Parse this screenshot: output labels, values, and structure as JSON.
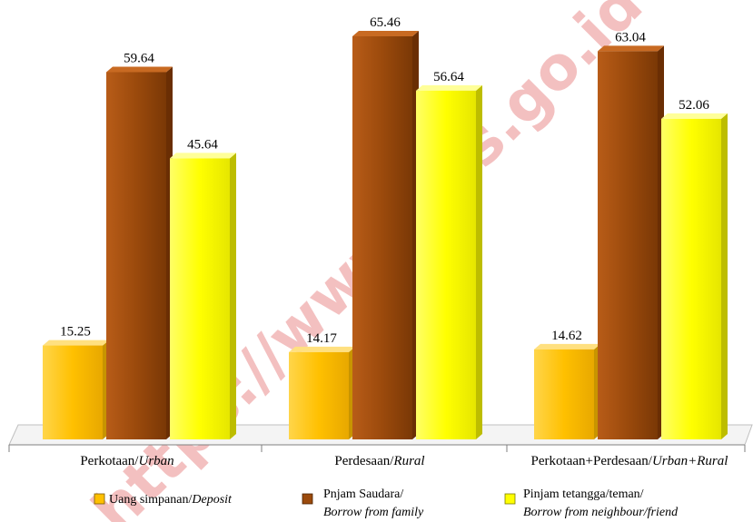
{
  "watermark": "https://www.bps.go.id",
  "chart_data": {
    "type": "bar",
    "categories": [
      {
        "main": "Perkotaan/",
        "italic": "Urban"
      },
      {
        "main": "Perdesaan/",
        "italic": "Rural"
      },
      {
        "main": "Perkotaan+Perdesaan/",
        "italic": "Urban+Rural"
      }
    ],
    "series": [
      {
        "name": "Uang simpanan/Deposit",
        "legend_main": "Uang simpanan/",
        "legend_italic": "Deposit",
        "legend_line2": "",
        "color": "#FFC000",
        "values": [
          15.25,
          14.17,
          14.62
        ]
      },
      {
        "name": "Pnjam Saudara/Borrow from family",
        "legend_main": "Pnjam Saudara/",
        "legend_italic": "",
        "legend_line2": "Borrow from family",
        "color": "#9B4A0C",
        "values": [
          59.64,
          65.46,
          63.04
        ]
      },
      {
        "name": "Pinjam tetangga/teman/Borrow from neighbour/friend",
        "legend_main": "Pinjam tetangga/teman/",
        "legend_italic": "",
        "legend_line2": "Borrow from neighbour/friend",
        "color": "#FFFF00",
        "values": [
          45.64,
          56.64,
          52.06
        ]
      }
    ],
    "ylim": [
      0,
      70
    ],
    "grid": false,
    "legend": "bottom"
  }
}
